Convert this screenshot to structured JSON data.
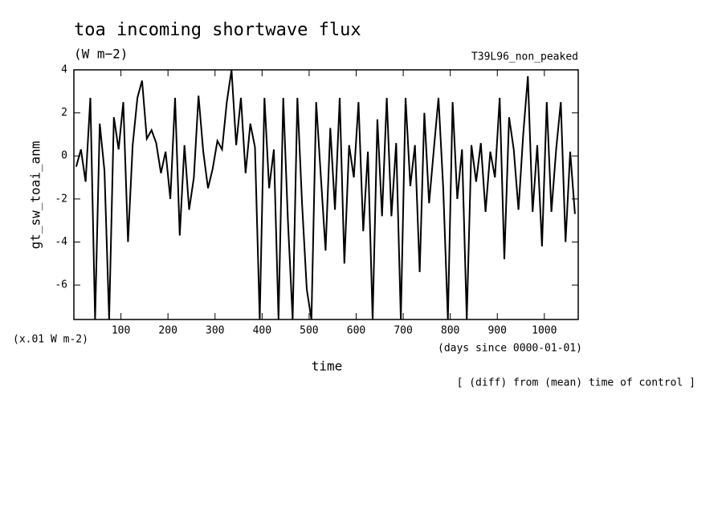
{
  "chart_data": {
    "type": "line",
    "title": "toa incoming shortwave flux",
    "subtitle": "(W m−2)",
    "experiment": "T39L96_non_peaked",
    "y_label": "gt_sw_toai_anm",
    "scale_note": "(x.01 W m-2)",
    "x_units": "(days since 0000-01-01)",
    "x_label": "time",
    "note": "[ (diff) from (mean) time of control ]",
    "xlim": [
      0,
      1072
    ],
    "ylim": [
      -7.6,
      4
    ],
    "xticks": [
      100,
      200,
      300,
      400,
      500,
      600,
      700,
      800,
      900,
      1000
    ],
    "yticks": [
      4,
      2,
      0,
      -2,
      -4,
      -6
    ],
    "color": "#000000",
    "x": [
      5,
      15,
      25,
      35,
      45,
      55,
      65,
      75,
      85,
      95,
      105,
      115,
      125,
      135,
      145,
      155,
      165,
      175,
      185,
      195,
      205,
      215,
      225,
      235,
      245,
      255,
      265,
      275,
      285,
      295,
      305,
      315,
      325,
      335,
      345,
      355,
      365,
      375,
      385,
      395,
      405,
      415,
      425,
      435,
      445,
      455,
      465,
      475,
      485,
      495,
      505,
      515,
      525,
      535,
      545,
      555,
      565,
      575,
      585,
      595,
      605,
      615,
      625,
      635,
      645,
      655,
      665,
      675,
      685,
      695,
      705,
      715,
      725,
      735,
      745,
      755,
      765,
      775,
      785,
      795,
      805,
      815,
      825,
      835,
      845,
      855,
      865,
      875,
      885,
      895,
      905,
      915,
      925,
      935,
      945,
      955,
      965,
      975,
      985,
      995,
      1005,
      1015,
      1025,
      1035,
      1045,
      1055,
      1065
    ],
    "values": [
      -0.5,
      0.3,
      -1.2,
      2.7,
      -7.6,
      1.5,
      -0.7,
      -7.6,
      1.8,
      0.3,
      2.5,
      -4,
      0.5,
      2.7,
      3.5,
      0.8,
      1.2,
      0.6,
      -0.8,
      0.2,
      -2,
      2.7,
      -3.7,
      0.5,
      -2.5,
      -1,
      2.8,
      0.2,
      -1.5,
      -0.6,
      0.7,
      0.3,
      2.5,
      4,
      0.5,
      2.7,
      -0.8,
      1.5,
      0.4,
      -7.6,
      2.7,
      -1.5,
      0.3,
      -7.6,
      2.7,
      -3,
      -7.6,
      2.7,
      -2.2,
      -6.2,
      -7.6,
      2.5,
      -1,
      -4.4,
      1.3,
      -2.5,
      2.7,
      -5,
      0.5,
      -1,
      2.5,
      -3.5,
      0.2,
      -7.6,
      1.7,
      -2.8,
      2.7,
      -2.8,
      0.6,
      -7.6,
      2.7,
      -1.4,
      0.5,
      -5.4,
      2,
      -2.2,
      0.3,
      2.7,
      -1.5,
      -7.6,
      2.5,
      -2,
      0.3,
      -7.6,
      0.5,
      -1.2,
      0.6,
      -2.6,
      0.2,
      -1,
      2.7,
      -4.8,
      1.8,
      0.3,
      -2.5,
      1,
      3.7,
      -2.6,
      0.5,
      -4.2,
      2.5,
      -2.6,
      0.3,
      2.5,
      -4,
      0.2,
      -2.7
    ]
  }
}
